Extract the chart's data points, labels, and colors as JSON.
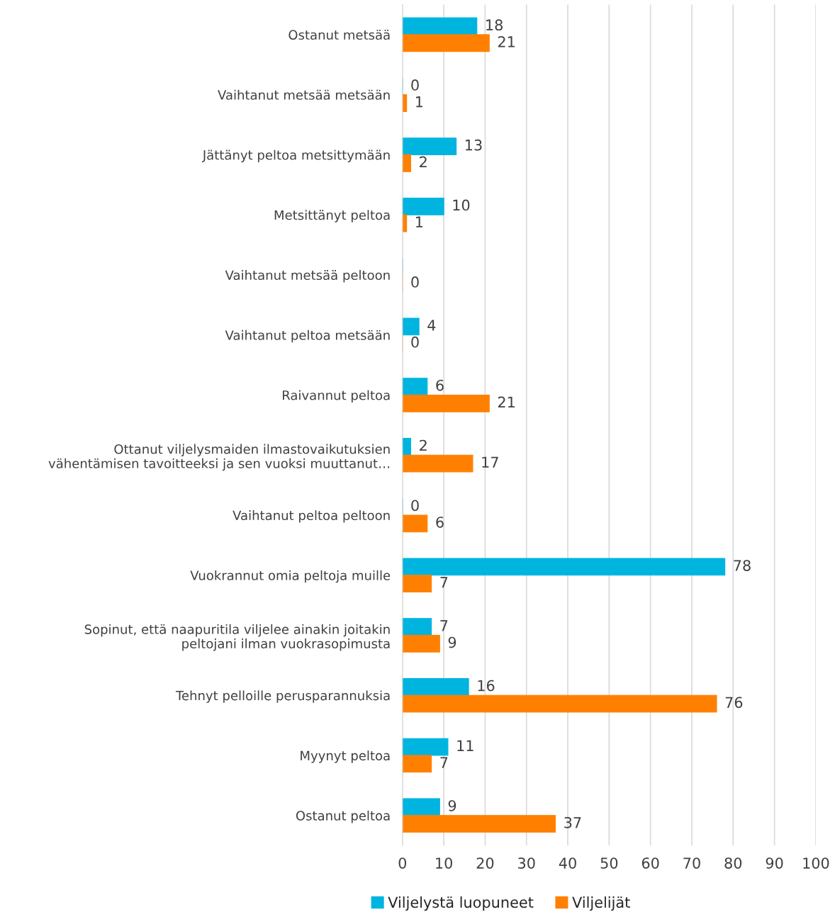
{
  "chart_data": {
    "type": "bar",
    "orientation": "horizontal",
    "categories": [
      "Ostanut metsää",
      "Vaihtanut metsää metsään",
      "Jättänyt peltoa metsittymään",
      "Metsittänyt peltoa",
      "Vaihtanut metsää peltoon",
      "Vaihtanut peltoa metsään",
      "Raivannut peltoa",
      "Ottanut viljelysmaiden ilmastovaikutuksien\nvähentämisen tavoitteeksi ja sen vuoksi muuttanut…",
      "Vaihtanut peltoa peltoon",
      "Vuokrannut omia peltoja muille",
      "Sopinut, että naapuritila viljelee ainakin joitakin\npeltojani ilman vuokrasopimusta",
      "Tehnyt pelloille perusparannuksia",
      "Myynyt peltoa",
      "Ostanut peltoa"
    ],
    "series": [
      {
        "name": "Viljelystä luopuneet",
        "color": "#00b4e0",
        "values": [
          18,
          0,
          13,
          10,
          0,
          4,
          6,
          2,
          0,
          78,
          7,
          16,
          11,
          9
        ],
        "value_labels": [
          "18",
          "0",
          "13",
          "10",
          null,
          "4",
          "6",
          "2",
          "0",
          "78",
          "7",
          "16",
          "11",
          "9"
        ]
      },
      {
        "name": "Viljelijät",
        "color": "#ff8000",
        "values": [
          21,
          1,
          2,
          1,
          0,
          0,
          21,
          17,
          6,
          7,
          9,
          76,
          7,
          37
        ],
        "value_labels": [
          "21",
          "1",
          "2",
          "1",
          "0",
          "0",
          "21",
          "17",
          "6",
          "7",
          "9",
          "76",
          "7",
          "37"
        ]
      }
    ],
    "xlim": [
      0,
      100
    ],
    "xticks": [
      0,
      10,
      20,
      30,
      40,
      50,
      60,
      70,
      80,
      90,
      100
    ],
    "grid": "x",
    "legend": "bottom"
  }
}
